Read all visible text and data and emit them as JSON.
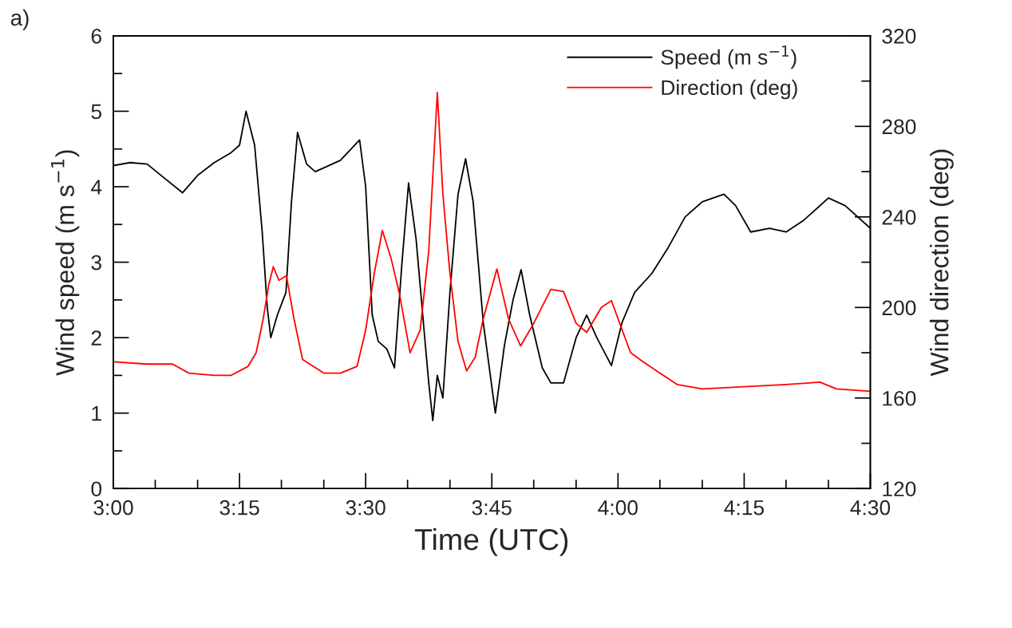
{
  "chart_data": {
    "type": "line",
    "xlabel": "Time (UTC)",
    "ylabel": "Wind speed (m s$^{−1}$)",
    "y2label": "Wind direction (deg)",
    "annotations": [
      "a)"
    ],
    "legend": "top right",
    "grid": false,
    "line_style": "solid",
    "marker": "none",
    "xlim": [
      3.0,
      4.5
    ],
    "xticks": [
      {
        "value": 3.0,
        "label": "3:00"
      },
      {
        "value": 3.083,
        "label": null
      },
      {
        "value": 3.167,
        "label": null
      },
      {
        "value": 3.25,
        "label": "3:15"
      },
      {
        "value": 3.333,
        "label": null
      },
      {
        "value": 3.417,
        "label": null
      },
      {
        "value": 3.5,
        "label": "3:30"
      },
      {
        "value": 3.583,
        "label": null
      },
      {
        "value": 3.667,
        "label": null
      },
      {
        "value": 3.75,
        "label": "3:45"
      },
      {
        "value": 3.833,
        "label": null
      },
      {
        "value": 3.917,
        "label": null
      },
      {
        "value": 4.0,
        "label": "4:00"
      },
      {
        "value": 4.083,
        "label": null
      },
      {
        "value": 4.167,
        "label": null
      },
      {
        "value": 4.25,
        "label": "4:15"
      },
      {
        "value": 4.333,
        "label": null
      },
      {
        "value": 4.417,
        "label": null
      },
      {
        "value": 4.5,
        "label": "4:30"
      }
    ],
    "ylim": [
      0,
      6
    ],
    "yticks": [
      0,
      {
        "value": 0.5,
        "label": null
      },
      1,
      {
        "value": 1.5,
        "label": null
      },
      2,
      {
        "value": 2.5,
        "label": null
      },
      3,
      {
        "value": 3.5,
        "label": null
      },
      4,
      {
        "value": 4.5,
        "label": null
      },
      5,
      {
        "value": 5.5,
        "label": null
      },
      6
    ],
    "y2lim": [
      120,
      320
    ],
    "y2ticks": [
      120,
      {
        "value": 140,
        "label": null
      },
      160,
      {
        "value": 180,
        "label": null
      },
      200,
      {
        "value": 220,
        "label": null
      },
      240,
      {
        "value": 260,
        "label": null
      },
      280,
      {
        "value": 300,
        "label": null
      },
      320
    ],
    "series": [
      {
        "name": "Speed (m s$^{−1}$)",
        "color": "#000000",
        "axis": "y",
        "x": [
          3.0,
          3.033,
          3.067,
          3.1,
          3.137,
          3.167,
          3.2,
          3.233,
          3.25,
          3.263,
          3.28,
          3.295,
          3.305,
          3.312,
          3.325,
          3.342,
          3.353,
          3.365,
          3.383,
          3.4,
          3.417,
          3.45,
          3.488,
          3.5,
          3.513,
          3.525,
          3.542,
          3.557,
          3.572,
          3.585,
          3.6,
          3.617,
          3.625,
          3.633,
          3.642,
          3.653,
          3.667,
          3.683,
          3.698,
          3.713,
          3.733,
          3.757,
          3.775,
          3.792,
          3.808,
          3.825,
          3.85,
          3.867,
          3.892,
          3.917,
          3.938,
          3.958,
          3.987,
          4.008,
          4.033,
          4.067,
          4.1,
          4.133,
          4.167,
          4.21,
          4.233,
          4.263,
          4.3,
          4.333,
          4.367,
          4.417,
          4.45,
          4.5
        ],
        "values": [
          4.28,
          4.32,
          4.3,
          4.12,
          3.92,
          4.15,
          4.32,
          4.45,
          4.55,
          5.0,
          4.55,
          3.4,
          2.4,
          2.0,
          2.3,
          2.6,
          3.8,
          4.72,
          4.3,
          4.2,
          4.25,
          4.35,
          4.62,
          4.0,
          2.3,
          1.95,
          1.85,
          1.6,
          3.0,
          4.05,
          3.3,
          2.0,
          1.4,
          0.9,
          1.5,
          1.2,
          2.6,
          3.9,
          4.37,
          3.8,
          2.2,
          1.0,
          1.9,
          2.5,
          2.9,
          2.3,
          1.6,
          1.4,
          1.4,
          2.0,
          2.3,
          2.0,
          1.63,
          2.2,
          2.6,
          2.85,
          3.2,
          3.6,
          3.8,
          3.9,
          3.75,
          3.4,
          3.45,
          3.4,
          3.55,
          3.85,
          3.75,
          3.45
        ]
      },
      {
        "name": "Direction (deg)",
        "color": "#ff0000",
        "axis": "y2",
        "x": [
          3.0,
          3.067,
          3.117,
          3.15,
          3.2,
          3.233,
          3.267,
          3.283,
          3.297,
          3.308,
          3.317,
          3.328,
          3.343,
          3.358,
          3.375,
          3.417,
          3.45,
          3.483,
          3.5,
          3.517,
          3.533,
          3.55,
          3.567,
          3.588,
          3.608,
          3.625,
          3.642,
          3.653,
          3.667,
          3.683,
          3.7,
          3.717,
          3.733,
          3.76,
          3.783,
          3.807,
          3.833,
          3.867,
          3.892,
          3.917,
          3.938,
          3.967,
          3.987,
          4.005,
          4.025,
          4.05,
          4.083,
          4.117,
          4.167,
          4.25,
          4.333,
          4.4,
          4.433,
          4.5
        ],
        "values": [
          176,
          175,
          175,
          171,
          170,
          170,
          174,
          180,
          195,
          210,
          218,
          212,
          214,
          195,
          177,
          171,
          171,
          174,
          190,
          215,
          234,
          222,
          206,
          180,
          190,
          225,
          295,
          250,
          215,
          185,
          172,
          178,
          195,
          217,
          195,
          183,
          193,
          208,
          207,
          193,
          189,
          200,
          203,
          192,
          180,
          176,
          171,
          166,
          164,
          165,
          166,
          167,
          164,
          163
        ]
      }
    ]
  }
}
